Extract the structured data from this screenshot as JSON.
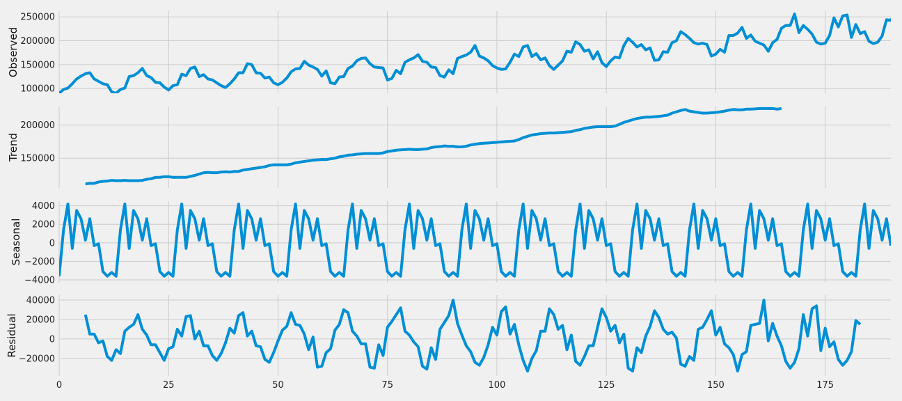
{
  "chart_data": {
    "type": "line",
    "figure": "seasonal_decompose",
    "grid": true,
    "line_color": "#008fd5",
    "background_color": "#f0f0f0",
    "grid_color": "#cbcbcb",
    "x_range": [
      0,
      190
    ],
    "x_ticks": [
      0,
      25,
      50,
      75,
      100,
      125,
      150,
      175
    ],
    "x_tick_labels": [
      "0",
      "25",
      "50",
      "75",
      "100",
      "125",
      "150",
      "175"
    ],
    "panels": [
      {
        "name": "observed",
        "ylabel": "Observed",
        "ylim": [
          90000,
          262000
        ],
        "y_ticks": [
          100000,
          150000,
          200000,
          250000
        ],
        "y_tick_labels": [
          "100000",
          "150000",
          "200000",
          "250000"
        ],
        "x_start": 0,
        "values": [
          90000,
          98000,
          101000,
          110000,
          120000,
          126000,
          131000,
          133000,
          120000,
          115000,
          110000,
          108000,
          93000,
          90000,
          98000,
          101000,
          125000,
          127000,
          133000,
          142000,
          127000,
          123000,
          113000,
          112000,
          103000,
          97000,
          106000,
          108000,
          130000,
          127000,
          142000,
          145000,
          125000,
          129000,
          120000,
          118000,
          112000,
          106000,
          102000,
          110000,
          120000,
          133000,
          133000,
          152000,
          150000,
          133000,
          132000,
          122000,
          124000,
          112000,
          108000,
          113000,
          122000,
          135000,
          141000,
          142000,
          157000,
          149000,
          145000,
          140000,
          126000,
          137000,
          112000,
          110000,
          124000,
          125000,
          142000,
          147000,
          158000,
          163000,
          164000,
          152000,
          145000,
          144000,
          143000,
          118000,
          121000,
          138000,
          131000,
          155000,
          160000,
          164000,
          171000,
          157000,
          155000,
          145000,
          144000,
          127000,
          124000,
          139000,
          131000,
          163000,
          167000,
          170000,
          176000,
          190000,
          168000,
          164000,
          158000,
          148000,
          143000,
          140000,
          141000,
          155000,
          172000,
          167000,
          187000,
          190000,
          167000,
          173000,
          160000,
          164000,
          148000,
          140000,
          149000,
          158000,
          178000,
          176000,
          198000,
          192000,
          178000,
          181000,
          162000,
          177000,
          154000,
          146000,
          158000,
          166000,
          164000,
          190000,
          205000,
          197000,
          187000,
          192000,
          181000,
          185000,
          159000,
          160000,
          177000,
          176000,
          196000,
          200000,
          219000,
          213000,
          205000,
          196000,
          193000,
          195000,
          192000,
          168000,
          172000,
          182000,
          176000,
          211000,
          211000,
          216000,
          228000,
          205000,
          212000,
          199000,
          195000,
          191000,
          178000,
          196000,
          203000,
          226000,
          232000,
          232000,
          256000,
          217000,
          232000,
          224000,
          214000,
          197000,
          193000,
          195000,
          211000,
          248000,
          229000,
          252000,
          254000,
          207000,
          234000,
          215000,
          219000,
          199000,
          194000,
          197000,
          210000,
          244000,
          243000,
          256000,
          246000,
          238000,
          237000,
          219000,
          227000
        ]
      },
      {
        "name": "trend",
        "ylabel": "Trend",
        "ylim": [
          105000,
          228000
        ],
        "y_ticks": [
          150000,
          200000
        ],
        "y_tick_labels": [
          "150000",
          "200000"
        ],
        "x_start": 6,
        "values": [
          111000,
          112000,
          112000,
          114000,
          115000,
          115500,
          116500,
          116000,
          116000,
          116500,
          116000,
          116000,
          116000,
          116500,
          118000,
          119000,
          121000,
          121000,
          122000,
          122000,
          121000,
          121000,
          121000,
          121000,
          122500,
          124000,
          126000,
          128000,
          128500,
          128000,
          128000,
          129000,
          129500,
          129000,
          130000,
          130000,
          132000,
          133000,
          134000,
          135000,
          136000,
          137000,
          139000,
          140000,
          140000,
          140000,
          140000,
          141000,
          143000,
          144000,
          145000,
          146000,
          147000,
          147500,
          148000,
          148000,
          149000,
          150000,
          152000,
          153000,
          154500,
          155000,
          156000,
          156500,
          157000,
          157000,
          157000,
          157000,
          158000,
          160000,
          161000,
          162000,
          162500,
          163000,
          163500,
          163000,
          163000,
          163500,
          164000,
          166000,
          167000,
          167500,
          168500,
          168000,
          168000,
          167000,
          167000,
          168000,
          170000,
          171000,
          172000,
          172500,
          173000,
          173500,
          174000,
          174500,
          175000,
          175500,
          176000,
          178000,
          181000,
          183000,
          185000,
          186000,
          187000,
          187500,
          188000,
          188000,
          188500,
          189000,
          189500,
          190000,
          192000,
          193000,
          195000,
          196000,
          197000,
          197500,
          197500,
          197500,
          197500,
          198500,
          201000,
          204000,
          206000,
          208000,
          210000,
          211000,
          212000,
          212000,
          212500,
          213000,
          214000,
          215000,
          218000,
          220000,
          222000,
          223500,
          221000,
          220000,
          219000,
          218000,
          218000,
          218500,
          219000,
          220000,
          221000,
          222500,
          223500,
          223000,
          223000,
          224000,
          224000,
          224500,
          225000,
          225000,
          225000,
          225000,
          224000,
          225000
        ]
      },
      {
        "name": "seasonal",
        "ylabel": "Seasonal",
        "ylim": [
          -4300,
          4500
        ],
        "y_ticks": [
          -4000,
          -2000,
          0,
          2000,
          4000
        ],
        "y_tick_labels": [
          "−4000",
          "−2000",
          "0",
          "2000",
          "4000"
        ],
        "x_start": 0,
        "period": 13,
        "pattern": [
          -3600,
          1400,
          4200,
          -600,
          3500,
          2600,
          300,
          2600,
          -300,
          -100,
          -3100,
          -3600,
          -3200
        ],
        "values": []
      },
      {
        "name": "resid",
        "ylabel": "Residual",
        "ylim": [
          -38000,
          45000
        ],
        "y_ticks": [
          -20000,
          0,
          20000,
          40000
        ],
        "y_tick_labels": [
          "−20000",
          "0",
          "20000",
          "40000"
        ],
        "x_start": 6,
        "values": [
          25000,
          5000,
          5000,
          -4000,
          -2000,
          -18000,
          -22000,
          -11000,
          -15000,
          8000,
          12000,
          15000,
          25000,
          10000,
          4000,
          -6000,
          -6000,
          -14000,
          -22000,
          -10000,
          -8000,
          10000,
          3000,
          23000,
          24000,
          0,
          8000,
          -7000,
          -7000,
          -17000,
          -22000,
          -15000,
          -4000,
          11000,
          6000,
          24000,
          27000,
          3000,
          8000,
          -7000,
          -8000,
          -21000,
          -24000,
          -14000,
          -2000,
          9000,
          13000,
          27000,
          15000,
          14000,
          5000,
          -11000,
          2000,
          -29000,
          -28000,
          -14000,
          -10000,
          9000,
          15000,
          30000,
          27000,
          8000,
          3000,
          -5000,
          -5000,
          -29000,
          -30000,
          -6000,
          -17000,
          12000,
          18000,
          25000,
          32000,
          8000,
          4000,
          -3000,
          -8000,
          -28000,
          -31000,
          -9000,
          -21000,
          10000,
          17000,
          24000,
          40000,
          16000,
          4000,
          -7000,
          -13000,
          -24000,
          -27000,
          -19000,
          -6000,
          12000,
          4000,
          28000,
          33000,
          5000,
          15000,
          -6000,
          -22000,
          -33000,
          -20000,
          -12000,
          8000,
          8000,
          31000,
          25000,
          10000,
          14000,
          -11000,
          4000,
          -23000,
          -27000,
          -18000,
          -7000,
          -7000,
          12000,
          31000,
          22000,
          8000,
          14000,
          -4000,
          5000,
          -30000,
          -33000,
          -9000,
          -14000,
          3000,
          13000,
          29000,
          22000,
          10000,
          5000,
          7000,
          1000,
          -26000,
          -28000,
          -18000,
          -22000,
          10000,
          12000,
          20000,
          29000,
          4000,
          12000,
          -5000,
          -9000,
          -16000,
          -33000,
          -16000,
          -13000,
          14000,
          15000,
          16000,
          40000,
          -2000,
          16000,
          3000,
          -7000,
          -23000,
          -30000,
          -24000,
          -10000,
          25000,
          3000,
          31000,
          34000,
          -12000,
          11000,
          -8000,
          -3000,
          -21000,
          -27000,
          -22000,
          -13000,
          19000,
          15000
        ]
      }
    ]
  }
}
